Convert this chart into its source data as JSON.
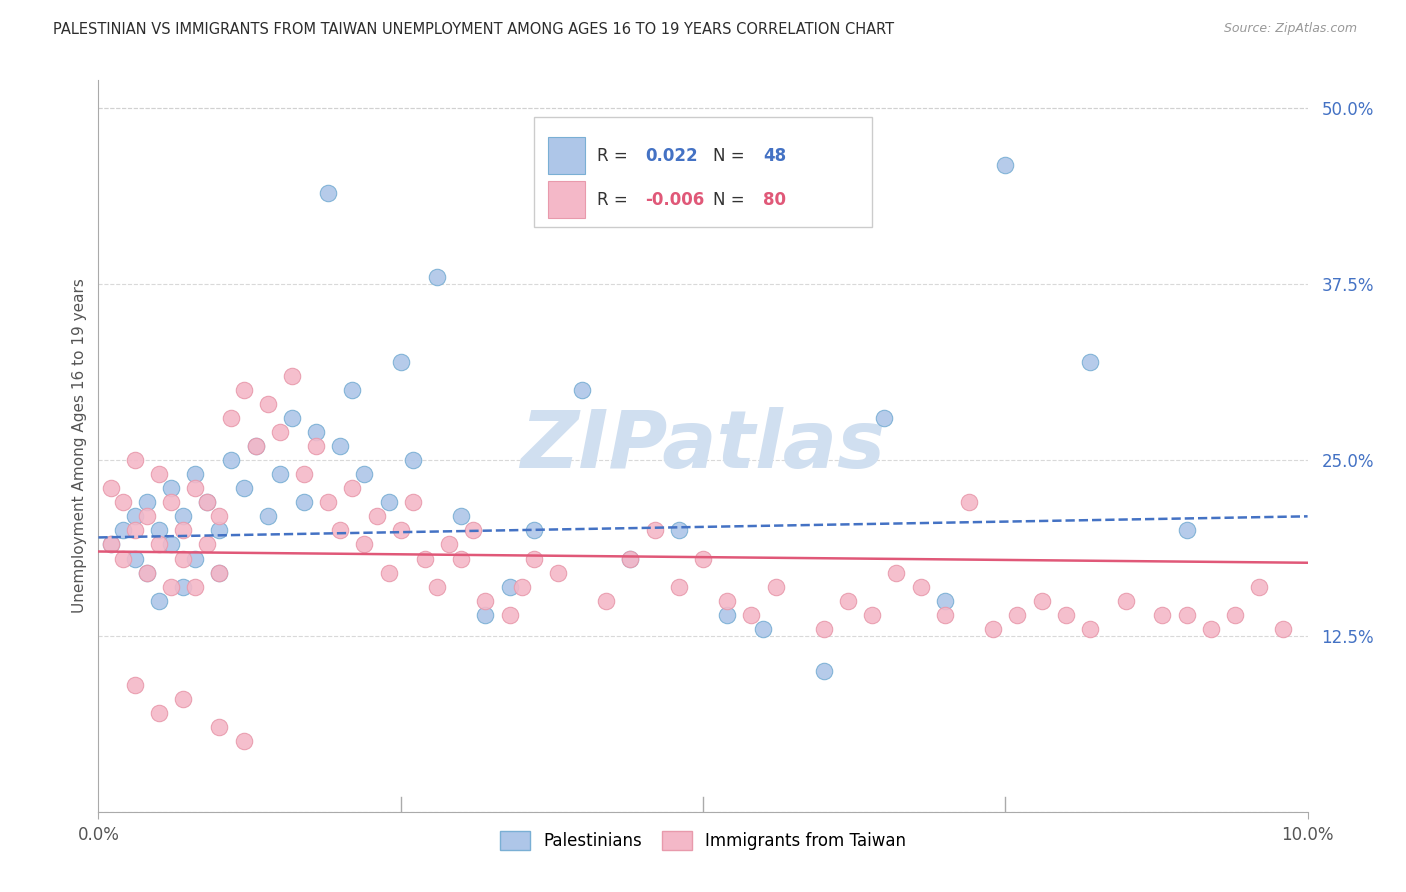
{
  "title": "PALESTINIAN VS IMMIGRANTS FROM TAIWAN UNEMPLOYMENT AMONG AGES 16 TO 19 YEARS CORRELATION CHART",
  "source": "Source: ZipAtlas.com",
  "ylabel": "Unemployment Among Ages 16 to 19 years",
  "blue_r": "0.022",
  "blue_n": "48",
  "pink_r": "-0.006",
  "pink_n": "80",
  "blue_fill": "#aec6e8",
  "blue_edge": "#7aafd4",
  "pink_fill": "#f4b8c8",
  "pink_edge": "#e89aac",
  "blue_line": "#4472c4",
  "pink_line": "#e05878",
  "title_color": "#2d2d2d",
  "source_color": "#999999",
  "ylabel_color": "#555555",
  "ytick_color": "#4472c4",
  "xtick_color": "#555555",
  "grid_color": "#d0d0d0",
  "watermark_color": "#d0dff0",
  "legend_edge": "#cccccc",
  "xlim": [
    0.0,
    0.1
  ],
  "ylim": [
    0.0,
    0.52
  ],
  "yticks": [
    0.0,
    0.125,
    0.25,
    0.375,
    0.5
  ],
  "ytick_labels": [
    "",
    "12.5%",
    "25.0%",
    "37.5%",
    "50.0%"
  ],
  "xticks": [
    0.0,
    0.1
  ],
  "xtick_labels": [
    "0.0%",
    "10.0%"
  ],
  "blue_x": [
    0.001,
    0.002,
    0.003,
    0.003,
    0.004,
    0.004,
    0.005,
    0.005,
    0.006,
    0.006,
    0.007,
    0.007,
    0.008,
    0.008,
    0.009,
    0.01,
    0.01,
    0.011,
    0.012,
    0.013,
    0.014,
    0.015,
    0.016,
    0.017,
    0.018,
    0.019,
    0.02,
    0.021,
    0.022,
    0.024,
    0.025,
    0.026,
    0.028,
    0.03,
    0.032,
    0.034,
    0.036,
    0.04,
    0.044,
    0.048,
    0.052,
    0.055,
    0.06,
    0.065,
    0.07,
    0.075,
    0.082,
    0.09
  ],
  "blue_y": [
    0.19,
    0.2,
    0.18,
    0.21,
    0.17,
    0.22,
    0.2,
    0.15,
    0.23,
    0.19,
    0.21,
    0.16,
    0.24,
    0.18,
    0.22,
    0.2,
    0.17,
    0.25,
    0.23,
    0.26,
    0.21,
    0.24,
    0.28,
    0.22,
    0.27,
    0.44,
    0.26,
    0.3,
    0.24,
    0.22,
    0.32,
    0.25,
    0.38,
    0.21,
    0.14,
    0.16,
    0.2,
    0.3,
    0.18,
    0.2,
    0.14,
    0.13,
    0.1,
    0.28,
    0.15,
    0.46,
    0.32,
    0.2
  ],
  "pink_x": [
    0.001,
    0.001,
    0.002,
    0.002,
    0.003,
    0.003,
    0.004,
    0.004,
    0.005,
    0.005,
    0.006,
    0.006,
    0.007,
    0.007,
    0.008,
    0.008,
    0.009,
    0.009,
    0.01,
    0.01,
    0.011,
    0.012,
    0.013,
    0.014,
    0.015,
    0.016,
    0.017,
    0.018,
    0.019,
    0.02,
    0.021,
    0.022,
    0.023,
    0.024,
    0.025,
    0.026,
    0.027,
    0.028,
    0.029,
    0.03,
    0.031,
    0.032,
    0.034,
    0.035,
    0.036,
    0.038,
    0.04,
    0.042,
    0.044,
    0.046,
    0.048,
    0.05,
    0.052,
    0.054,
    0.056,
    0.058,
    0.06,
    0.062,
    0.064,
    0.066,
    0.068,
    0.07,
    0.072,
    0.074,
    0.076,
    0.078,
    0.08,
    0.082,
    0.085,
    0.088,
    0.09,
    0.092,
    0.094,
    0.096,
    0.098,
    0.003,
    0.005,
    0.007,
    0.01,
    0.012
  ],
  "pink_y": [
    0.19,
    0.23,
    0.18,
    0.22,
    0.2,
    0.25,
    0.17,
    0.21,
    0.19,
    0.24,
    0.16,
    0.22,
    0.2,
    0.18,
    0.23,
    0.16,
    0.22,
    0.19,
    0.21,
    0.17,
    0.28,
    0.3,
    0.26,
    0.29,
    0.27,
    0.31,
    0.24,
    0.26,
    0.22,
    0.2,
    0.23,
    0.19,
    0.21,
    0.17,
    0.2,
    0.22,
    0.18,
    0.16,
    0.19,
    0.18,
    0.2,
    0.15,
    0.14,
    0.16,
    0.18,
    0.17,
    0.44,
    0.15,
    0.18,
    0.2,
    0.16,
    0.18,
    0.15,
    0.14,
    0.16,
    0.44,
    0.13,
    0.15,
    0.14,
    0.17,
    0.16,
    0.14,
    0.22,
    0.13,
    0.14,
    0.15,
    0.14,
    0.13,
    0.15,
    0.14,
    0.14,
    0.13,
    0.14,
    0.16,
    0.13,
    0.09,
    0.07,
    0.08,
    0.06,
    0.05
  ],
  "figsize": [
    14.06,
    8.92
  ],
  "dpi": 100
}
